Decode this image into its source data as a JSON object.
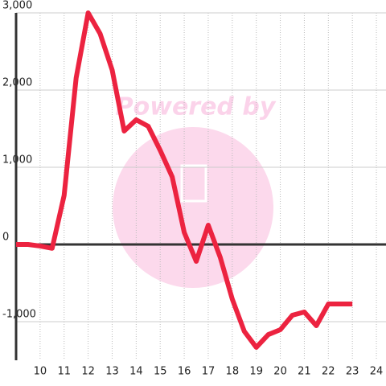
{
  "chart_data": {
    "type": "line",
    "watermark": "Powered by",
    "x": [
      9,
      9.5,
      10,
      10.5,
      11,
      11.5,
      12,
      12.5,
      13,
      13.5,
      14,
      14.5,
      15,
      15.5,
      16,
      16.5,
      17,
      17.5,
      18,
      18.5,
      19,
      19.5,
      20,
      20.5,
      21,
      21.5,
      22,
      22.5,
      23
    ],
    "series": [
      {
        "color": "#ec2340",
        "values": [
          0,
          0,
          -20,
          -50,
          635,
          2156,
          3000,
          2729,
          2260,
          1469,
          1615,
          1531,
          1219,
          875,
          156,
          -219,
          250,
          -167,
          -708,
          -1125,
          -1333,
          -1167,
          -1104,
          -917,
          -875,
          -1052,
          -771,
          -771,
          -771
        ]
      }
    ],
    "xlim": [
      9,
      24.4
    ],
    "ylim": [
      -1500,
      3000
    ],
    "xticks": [
      10,
      11,
      12,
      13,
      14,
      15,
      16,
      17,
      18,
      19,
      20,
      21,
      22,
      23,
      24
    ],
    "yticks": [
      {
        "value": -1000,
        "label": "-1,000"
      },
      0,
      {
        "value": 1000,
        "label": "1,000"
      },
      {
        "value": 2000,
        "label": "2,000"
      },
      {
        "value": 3000,
        "label": "3,000"
      }
    ],
    "grid": true
  }
}
